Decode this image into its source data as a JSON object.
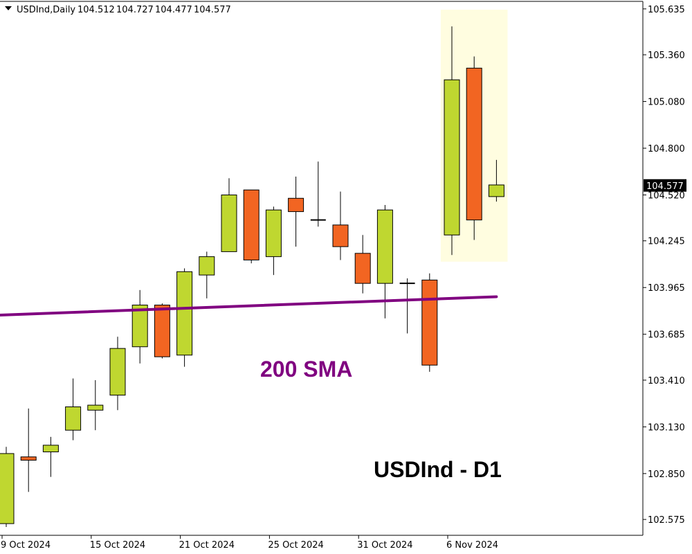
{
  "header": {
    "symbol": "USDInd,Daily",
    "open": "104.512",
    "high": "104.727",
    "low": "104.477",
    "close": "104.577"
  },
  "annotations": {
    "sma_label": "200 SMA",
    "chart_label": "USDInd - D1"
  },
  "colors": {
    "bull": "#bfd730",
    "bear": "#f26522",
    "sma": "#800080",
    "highlight": "#fffde0",
    "price_tag_bg": "#000000",
    "price_tag_text": "#ffffff"
  },
  "chart_data": {
    "type": "candlestick",
    "symbol": "USDInd",
    "timeframe": "Daily",
    "ylim": [
      102.48,
      105.68
    ],
    "y_ticks": [
      102.575,
      102.85,
      103.13,
      103.41,
      103.685,
      103.965,
      104.245,
      104.52,
      104.8,
      105.08,
      105.36,
      105.635
    ],
    "y_tick_labels": [
      "102.575",
      "102.850",
      "103.130",
      "103.410",
      "103.685",
      "103.965",
      "104.245",
      "104.520",
      "104.800",
      "105.080",
      "105.360",
      "105.635"
    ],
    "x_ticks": [
      {
        "index": 0,
        "label": "9 Oct 2024"
      },
      {
        "index": 4,
        "label": "15 Oct 2024"
      },
      {
        "index": 8,
        "label": "21 Oct 2024"
      },
      {
        "index": 12,
        "label": "25 Oct 2024"
      },
      {
        "index": 16,
        "label": "31 Oct 2024"
      },
      {
        "index": 20,
        "label": "6 Nov 2024"
      }
    ],
    "current_price": "104.577",
    "candles": [
      {
        "o": 102.55,
        "h": 103.01,
        "l": 102.53,
        "c": 102.97
      },
      {
        "o": 102.95,
        "h": 103.24,
        "l": 102.74,
        "c": 102.93
      },
      {
        "o": 102.98,
        "h": 103.07,
        "l": 102.83,
        "c": 103.02
      },
      {
        "o": 103.11,
        "h": 103.42,
        "l": 103.05,
        "c": 103.25
      },
      {
        "o": 103.23,
        "h": 103.41,
        "l": 103.11,
        "c": 103.26
      },
      {
        "o": 103.32,
        "h": 103.67,
        "l": 103.23,
        "c": 103.6
      },
      {
        "o": 103.61,
        "h": 103.95,
        "l": 103.51,
        "c": 103.86
      },
      {
        "o": 103.86,
        "h": 103.87,
        "l": 103.54,
        "c": 103.55
      },
      {
        "o": 103.56,
        "h": 104.08,
        "l": 103.49,
        "c": 104.06
      },
      {
        "o": 104.04,
        "h": 104.18,
        "l": 103.9,
        "c": 104.15
      },
      {
        "o": 104.18,
        "h": 104.62,
        "l": 104.18,
        "c": 104.52
      },
      {
        "o": 104.55,
        "h": 104.55,
        "l": 104.11,
        "c": 104.13
      },
      {
        "o": 104.15,
        "h": 104.45,
        "l": 104.04,
        "c": 104.43
      },
      {
        "o": 104.5,
        "h": 104.63,
        "l": 104.21,
        "c": 104.42
      },
      {
        "o": 104.37,
        "h": 104.72,
        "l": 104.33,
        "c": 104.37
      },
      {
        "o": 104.34,
        "h": 104.54,
        "l": 104.13,
        "c": 104.21
      },
      {
        "o": 104.17,
        "h": 104.28,
        "l": 103.93,
        "c": 103.99
      },
      {
        "o": 103.99,
        "h": 104.46,
        "l": 103.78,
        "c": 104.43
      },
      {
        "o": 103.99,
        "h": 104.02,
        "l": 103.69,
        "c": 103.99
      },
      {
        "o": 104.01,
        "h": 104.05,
        "l": 103.46,
        "c": 103.5
      },
      {
        "o": 104.28,
        "h": 105.53,
        "l": 104.16,
        "c": 105.21
      },
      {
        "o": 105.28,
        "h": 105.35,
        "l": 104.25,
        "c": 104.37
      },
      {
        "o": 104.51,
        "h": 104.73,
        "l": 104.48,
        "c": 104.58
      }
    ],
    "sma": {
      "name": "200 SMA",
      "start_index": -0.5,
      "start_value": 103.8,
      "end_index": 22,
      "end_value": 103.91
    },
    "highlight_range": {
      "from_index": 19.5,
      "to_index": 22.5,
      "low": 104.12,
      "high": 105.63
    }
  }
}
